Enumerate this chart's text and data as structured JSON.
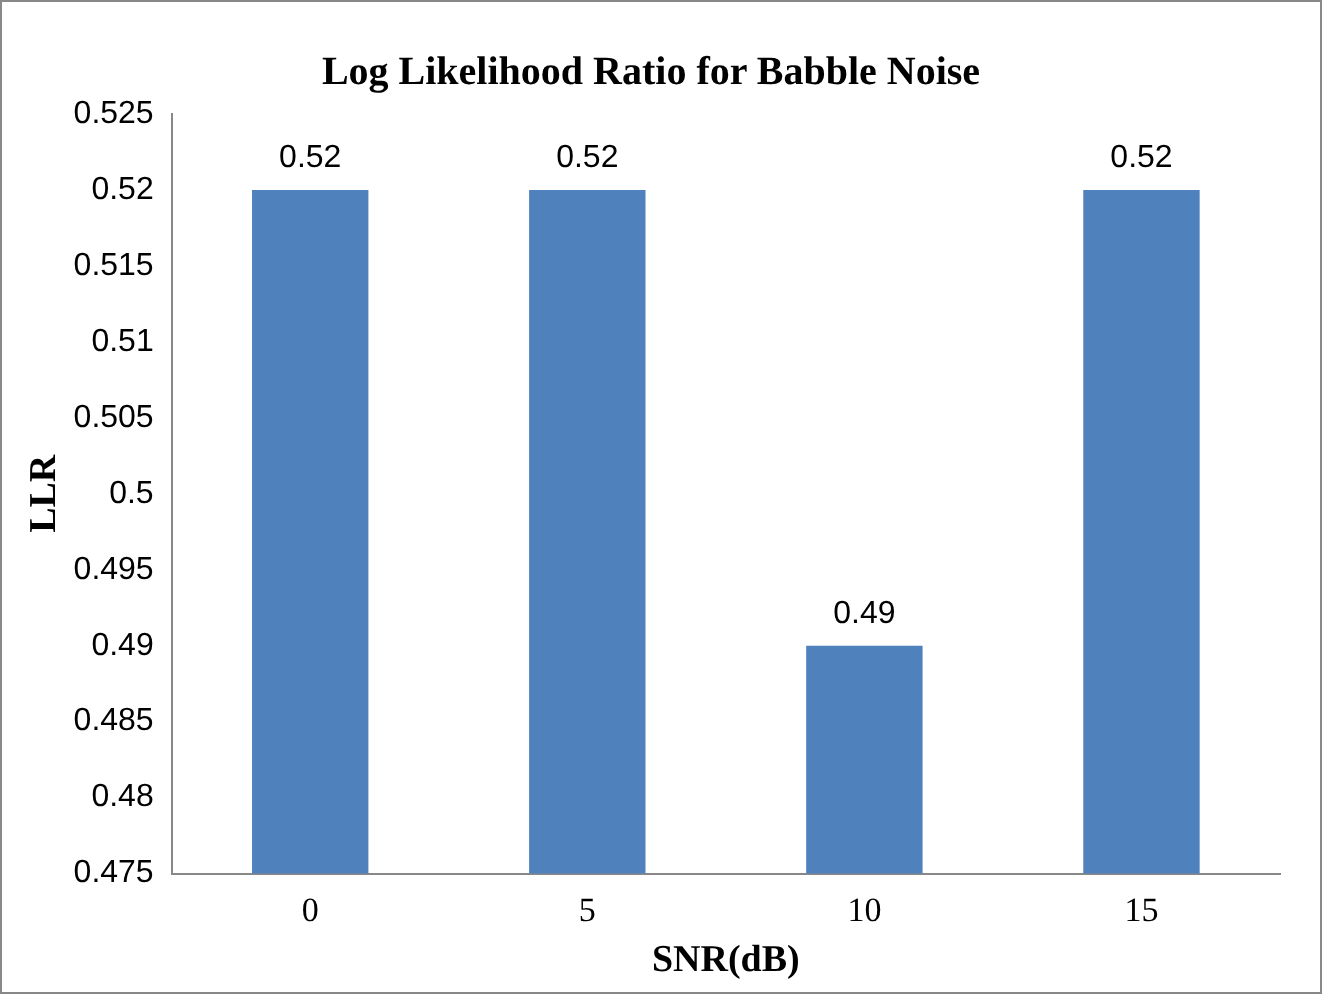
{
  "chart_data": {
    "type": "bar",
    "title": "Log Likelihood Ratio for Babble Noise",
    "xlabel": "SNR(dB)",
    "ylabel": "LLR",
    "categories": [
      "0",
      "5",
      "10",
      "15"
    ],
    "values": [
      0.52,
      0.52,
      0.49,
      0.52
    ],
    "color": "#4f81bd",
    "ylim": [
      0.475,
      0.525
    ],
    "yticks": [
      0.475,
      0.48,
      0.485,
      0.49,
      0.495,
      0.5,
      0.505,
      0.51,
      0.515,
      0.52,
      0.525
    ],
    "data_labels": true,
    "grid": false,
    "legend": false
  }
}
